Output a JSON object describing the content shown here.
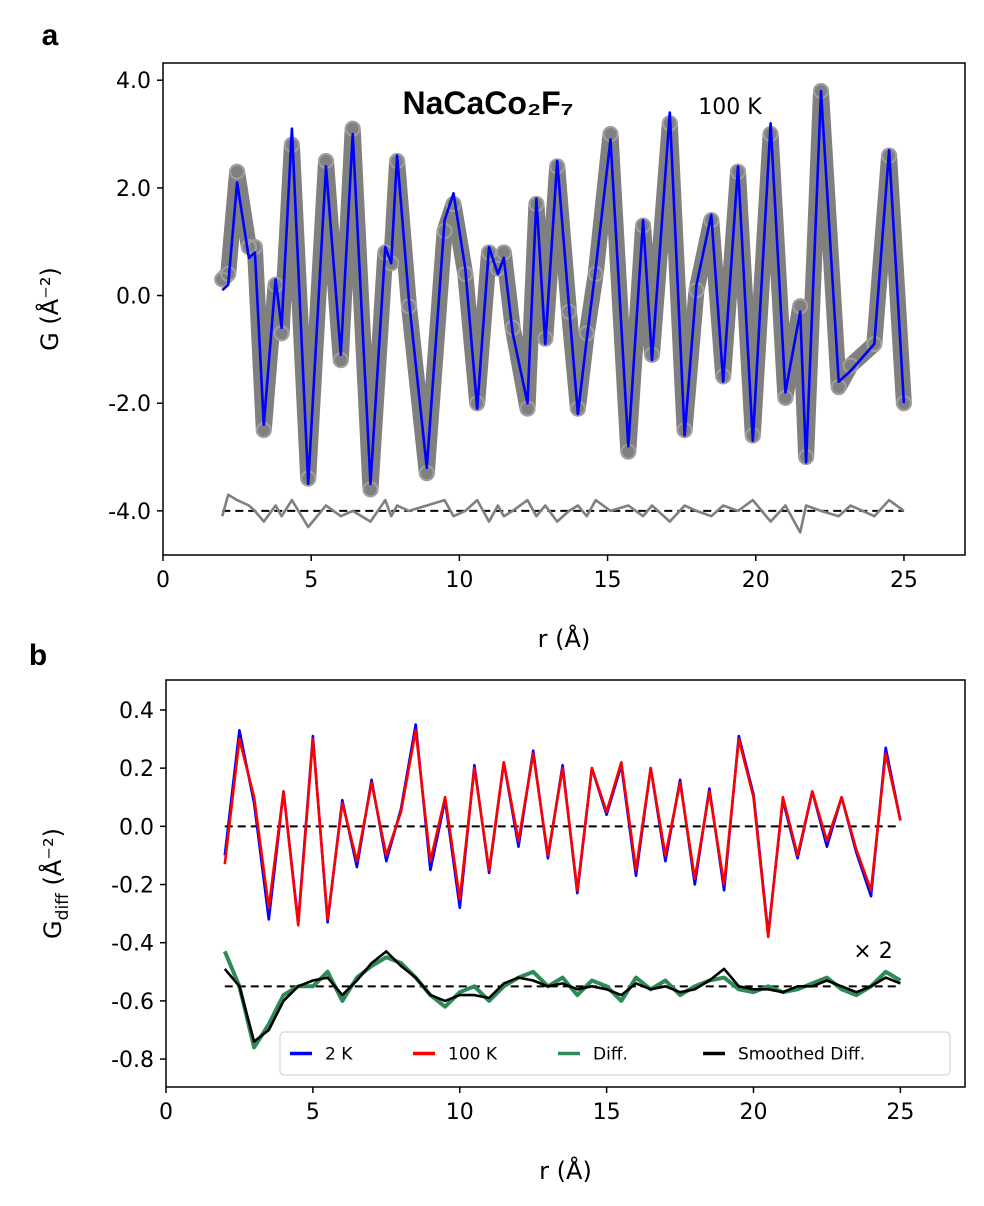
{
  "chart_data": [
    {
      "type": "line",
      "panel_label": "a",
      "title": "NaCaCo₂F₇",
      "annotation": "100 K",
      "xlabel": "r (Å)",
      "ylabel": "G (Å⁻²)",
      "xlim": [
        0,
        27.06
      ],
      "ylim": [
        -4.82,
        4.32
      ],
      "xticks": [
        0,
        5,
        10,
        15,
        20,
        25
      ],
      "yticks": [
        {
          "value": 4,
          "label": "4.0"
        },
        {
          "value": 2,
          "label": "2.0"
        },
        {
          "value": 0,
          "label": "0.0"
        },
        {
          "value": -2,
          "label": "-2.0"
        },
        {
          "value": -4,
          "label": "-4.0"
        }
      ],
      "reference_lines": [
        {
          "y": -4,
          "from": 2,
          "to": 25,
          "color": "#000000"
        }
      ],
      "x": [
        2.0,
        2.2,
        2.5,
        2.9,
        3.1,
        3.4,
        3.8,
        4.0,
        4.35,
        4.9,
        5.5,
        6.0,
        6.4,
        7.0,
        7.5,
        7.7,
        7.9,
        8.3,
        8.9,
        9.5,
        9.8,
        10.2,
        10.6,
        11.0,
        11.3,
        11.5,
        11.8,
        12.3,
        12.6,
        12.9,
        13.3,
        13.7,
        14.0,
        14.3,
        14.6,
        15.1,
        15.7,
        16.2,
        16.5,
        17.1,
        17.6,
        18.0,
        18.5,
        18.9,
        19.4,
        19.9,
        20.5,
        21.0,
        21.5,
        21.7,
        22.2,
        22.8,
        23.2,
        24.0,
        24.5,
        25.0
      ],
      "series": [
        {
          "color": "#808080",
          "marker": "circle",
          "values": [
            0.3,
            0.4,
            2.3,
            0.9,
            0.9,
            -2.5,
            0.2,
            -0.7,
            2.8,
            -3.4,
            2.5,
            -1.2,
            3.1,
            -3.6,
            0.8,
            0.6,
            2.5,
            -0.2,
            -3.3,
            1.2,
            1.7,
            0.4,
            -2.0,
            0.8,
            0.5,
            0.8,
            -0.6,
            -2.1,
            1.7,
            -0.8,
            2.4,
            -0.3,
            -2.1,
            -0.7,
            0.4,
            3.0,
            -2.9,
            1.3,
            -1.1,
            3.2,
            -2.5,
            0.1,
            1.4,
            -1.5,
            2.3,
            -2.6,
            3.0,
            -1.9,
            -0.2,
            -3.0,
            3.8,
            -1.7,
            -1.3,
            -0.9,
            2.6,
            -2.0
          ]
        },
        {
          "color": "#0000ff",
          "marker": "none",
          "values": [
            0.1,
            0.2,
            2.1,
            0.7,
            0.8,
            -2.4,
            0.3,
            -0.6,
            3.1,
            -3.5,
            2.4,
            -1.1,
            3.0,
            -3.5,
            0.9,
            0.6,
            2.6,
            -0.1,
            -3.2,
            1.4,
            1.9,
            0.5,
            -2.1,
            0.9,
            0.4,
            0.7,
            -0.7,
            -2.0,
            1.8,
            -0.9,
            2.5,
            -0.2,
            -2.2,
            -0.8,
            0.5,
            2.9,
            -2.8,
            1.4,
            -1.2,
            3.4,
            -2.6,
            0.2,
            1.5,
            -1.6,
            2.4,
            -2.7,
            3.2,
            -1.8,
            -0.3,
            -3.1,
            3.8,
            -1.6,
            -1.4,
            -0.9,
            2.7,
            -2.0
          ]
        },
        {
          "color": "#808080",
          "marker": "none",
          "values": [
            -4.1,
            -3.7,
            -3.8,
            -3.9,
            -4.0,
            -4.2,
            -3.9,
            -4.1,
            -3.8,
            -4.3,
            -3.9,
            -4.1,
            -4.0,
            -4.2,
            -3.8,
            -4.1,
            -3.9,
            -4.0,
            -3.9,
            -3.8,
            -4.1,
            -4.0,
            -3.8,
            -4.2,
            -3.9,
            -4.1,
            -4.0,
            -3.8,
            -4.1,
            -3.9,
            -4.2,
            -4.0,
            -3.9,
            -4.1,
            -3.8,
            -4.0,
            -3.9,
            -4.1,
            -3.9,
            -4.2,
            -3.9,
            -4.0,
            -4.1,
            -3.9,
            -4.0,
            -3.8,
            -4.2,
            -3.9,
            -4.4,
            -3.9,
            -4.0,
            -4.1,
            -3.9,
            -4.1,
            -3.8,
            -4.0
          ]
        }
      ]
    },
    {
      "type": "line",
      "panel_label": "b",
      "annotation": "× 2",
      "xlabel": "r (Å)",
      "ylabel": {
        "main": "G",
        "sub": "diff",
        "unit": " (Å⁻²)"
      },
      "xlim": [
        0,
        27.2
      ],
      "ylim": [
        -0.896,
        0.503
      ],
      "xticks": [
        0,
        5,
        10,
        15,
        20,
        25
      ],
      "yticks": [
        {
          "value": 0.4,
          "label": "0.4"
        },
        {
          "value": 0.2,
          "label": "0.2"
        },
        {
          "value": 0,
          "label": "0.0"
        },
        {
          "value": -0.2,
          "label": "-0.2"
        },
        {
          "value": -0.4,
          "label": "-0.4"
        },
        {
          "value": -0.6,
          "label": "-0.6"
        },
        {
          "value": -0.8,
          "label": "-0.8"
        }
      ],
      "reference_lines": [
        {
          "y": 0,
          "from": 2,
          "to": 25,
          "color": "#000000"
        },
        {
          "y": -0.55,
          "from": 2,
          "to": 25,
          "color": "#000000"
        }
      ],
      "legend": "lower right",
      "x": [
        2.0,
        2.5,
        3.0,
        3.5,
        4.0,
        4.5,
        5.0,
        5.5,
        6.0,
        6.5,
        7.0,
        7.5,
        8.0,
        8.5,
        9.0,
        9.5,
        10.0,
        10.5,
        11.0,
        11.5,
        12.0,
        12.5,
        13.0,
        13.5,
        14.0,
        14.5,
        15.0,
        15.5,
        16.0,
        16.5,
        17.0,
        17.5,
        18.0,
        18.5,
        19.0,
        19.5,
        20.0,
        20.5,
        21.0,
        21.5,
        22.0,
        22.5,
        23.0,
        23.5,
        24.0,
        24.5,
        25.0
      ],
      "series": [
        {
          "name": "2 K",
          "color": "#0000ff",
          "values": [
            -0.1,
            0.33,
            0.08,
            -0.32,
            0.12,
            -0.33,
            0.31,
            -0.33,
            0.09,
            -0.14,
            0.16,
            -0.12,
            0.06,
            0.35,
            -0.15,
            0.09,
            -0.28,
            0.21,
            -0.16,
            0.22,
            -0.07,
            0.26,
            -0.11,
            0.21,
            -0.23,
            0.2,
            0.04,
            0.21,
            -0.17,
            0.2,
            -0.12,
            0.16,
            -0.2,
            0.13,
            -0.22,
            0.31,
            0.11,
            -0.37,
            0.09,
            -0.11,
            0.12,
            -0.07,
            0.1,
            -0.09,
            -0.24,
            0.27,
            0.02
          ]
        },
        {
          "name": "100 K",
          "color": "#ff0000",
          "values": [
            -0.13,
            0.3,
            0.1,
            -0.28,
            0.12,
            -0.34,
            0.3,
            -0.32,
            0.08,
            -0.12,
            0.15,
            -0.1,
            0.05,
            0.33,
            -0.12,
            0.1,
            -0.25,
            0.2,
            -0.15,
            0.22,
            -0.05,
            0.25,
            -0.1,
            0.2,
            -0.22,
            0.2,
            0.05,
            0.22,
            -0.15,
            0.2,
            -0.1,
            0.15,
            -0.18,
            0.12,
            -0.2,
            0.3,
            0.1,
            -0.38,
            0.1,
            -0.1,
            0.12,
            -0.05,
            0.1,
            -0.08,
            -0.22,
            0.25,
            0.02
          ]
        },
        {
          "name": "Diff.",
          "color": "#2e8b57",
          "values": [
            -0.43,
            -0.55,
            -0.76,
            -0.68,
            -0.58,
            -0.55,
            -0.55,
            -0.5,
            -0.6,
            -0.52,
            -0.48,
            -0.45,
            -0.47,
            -0.52,
            -0.58,
            -0.62,
            -0.57,
            -0.55,
            -0.6,
            -0.55,
            -0.52,
            -0.5,
            -0.55,
            -0.52,
            -0.58,
            -0.53,
            -0.55,
            -0.6,
            -0.52,
            -0.56,
            -0.53,
            -0.58,
            -0.55,
            -0.53,
            -0.52,
            -0.56,
            -0.57,
            -0.55,
            -0.57,
            -0.56,
            -0.54,
            -0.52,
            -0.56,
            -0.58,
            -0.55,
            -0.5,
            -0.53
          ]
        },
        {
          "name": "Smoothed Diff.",
          "color": "#000000",
          "values": [
            -0.49,
            -0.55,
            -0.74,
            -0.7,
            -0.6,
            -0.55,
            -0.53,
            -0.52,
            -0.58,
            -0.53,
            -0.47,
            -0.43,
            -0.48,
            -0.52,
            -0.58,
            -0.6,
            -0.58,
            -0.58,
            -0.59,
            -0.54,
            -0.52,
            -0.53,
            -0.55,
            -0.54,
            -0.56,
            -0.55,
            -0.56,
            -0.58,
            -0.54,
            -0.56,
            -0.55,
            -0.57,
            -0.56,
            -0.53,
            -0.49,
            -0.55,
            -0.56,
            -0.56,
            -0.57,
            -0.55,
            -0.55,
            -0.53,
            -0.55,
            -0.57,
            -0.55,
            -0.52,
            -0.54
          ]
        }
      ]
    }
  ]
}
